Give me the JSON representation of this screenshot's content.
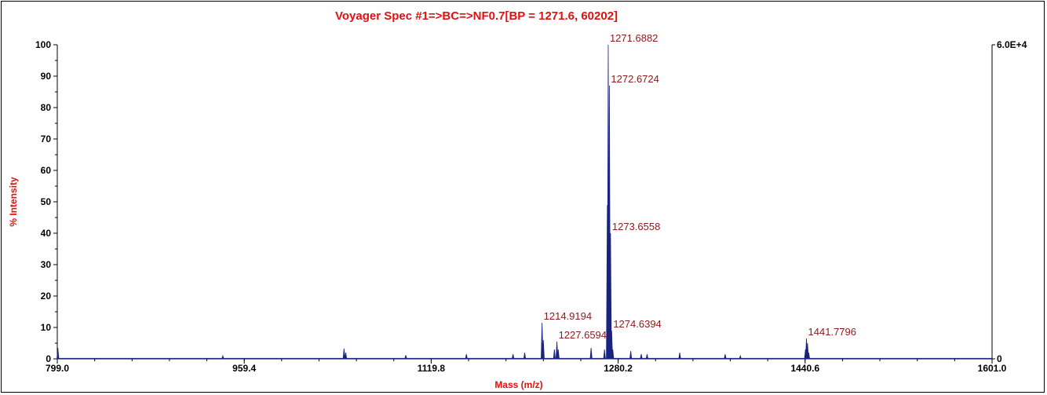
{
  "chart_data": {
    "type": "line",
    "title": "Voyager Spec #1=>BC=>NF0.7[BP = 1271.6, 60202]",
    "xlabel": "Mass (m/z)",
    "ylabel": "% Intensity",
    "xlim": [
      799.0,
      1601.0
    ],
    "ylim": [
      0,
      100
    ],
    "x_ticks": [
      "799.0",
      "959.4",
      "1119.8",
      "1280.2",
      "1440.6",
      "1601.0"
    ],
    "y_ticks": [
      "0",
      "10",
      "20",
      "30",
      "40",
      "50",
      "60",
      "70",
      "80",
      "90",
      "100"
    ],
    "right_axis": {
      "top_label": "6.0E+4",
      "bottom_label": "0"
    },
    "series_color": "#1a237e",
    "peaks": [
      {
        "x": 799.5,
        "y": 3.5
      },
      {
        "x": 941.0,
        "y": 1.0
      },
      {
        "x": 1045.0,
        "y": 3.3
      },
      {
        "x": 1046.5,
        "y": 2.0
      },
      {
        "x": 1098.0,
        "y": 1.2
      },
      {
        "x": 1150.0,
        "y": 1.5
      },
      {
        "x": 1190.0,
        "y": 1.5
      },
      {
        "x": 1200.0,
        "y": 2.0
      },
      {
        "x": 1214.9194,
        "y": 11.5
      },
      {
        "x": 1216.0,
        "y": 6.0
      },
      {
        "x": 1225.5,
        "y": 3.0
      },
      {
        "x": 1227.6594,
        "y": 5.5
      },
      {
        "x": 1228.8,
        "y": 3.0
      },
      {
        "x": 1257.0,
        "y": 3.5
      },
      {
        "x": 1268.5,
        "y": 3.0
      },
      {
        "x": 1270.9,
        "y": 49.0
      },
      {
        "x": 1271.6882,
        "y": 100
      },
      {
        "x": 1272.6724,
        "y": 87.0
      },
      {
        "x": 1273.6558,
        "y": 40.0
      },
      {
        "x": 1274.6394,
        "y": 9.0
      },
      {
        "x": 1275.6,
        "y": 3.0
      },
      {
        "x": 1291.0,
        "y": 2.5
      },
      {
        "x": 1300.0,
        "y": 1.5
      },
      {
        "x": 1305.0,
        "y": 1.5
      },
      {
        "x": 1333.0,
        "y": 2.0
      },
      {
        "x": 1372.0,
        "y": 1.5
      },
      {
        "x": 1385.0,
        "y": 1.0
      },
      {
        "x": 1440.9,
        "y": 3.0
      },
      {
        "x": 1441.7796,
        "y": 6.5
      },
      {
        "x": 1442.7,
        "y": 5.0
      },
      {
        "x": 1443.7,
        "y": 2.0
      }
    ],
    "annotations": [
      {
        "text": "1271.6882",
        "x": 1271.6882,
        "y": 100
      },
      {
        "text": "1272.6724",
        "x": 1272.6724,
        "y": 87.0
      },
      {
        "text": "1273.6558",
        "x": 1273.6558,
        "y": 40.0
      },
      {
        "text": "1274.6394",
        "x": 1274.6394,
        "y": 9.0
      },
      {
        "text": "1214.9194",
        "x": 1214.9194,
        "y": 11.5
      },
      {
        "text": "1227.6594",
        "x": 1227.6594,
        "y": 5.5
      },
      {
        "text": "1441.7796",
        "x": 1441.7796,
        "y": 6.5
      }
    ],
    "grid": false,
    "legend": "none"
  }
}
